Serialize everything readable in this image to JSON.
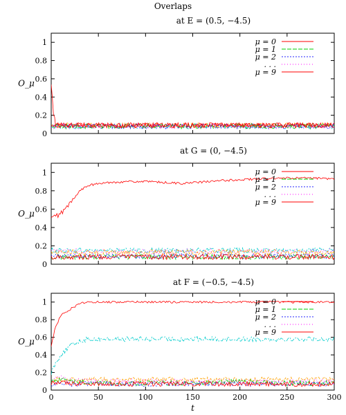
{
  "title": "Overlaps",
  "chart_data": [
    {
      "type": "line",
      "title": "at E = (0.5, −4.5)",
      "ylabel": "O_μ",
      "xlim": [
        0,
        300
      ],
      "ylim": [
        0,
        1.1
      ],
      "yticks": [
        "0",
        "0.2",
        "0.4",
        "0.6",
        "0.8",
        "1"
      ],
      "xticks": [],
      "legend_placement": "top-right",
      "series": [
        {
          "name": "μ = 0",
          "color": "#ff0000",
          "dash": "",
          "x": [
            0,
            2,
            5,
            50,
            100,
            150,
            200,
            250,
            300
          ],
          "y": [
            0.55,
            0.25,
            0.09,
            0.09,
            0.09,
            0.09,
            0.09,
            0.09,
            0.09
          ]
        },
        {
          "name": "μ = 1",
          "color": "#00cc00",
          "dash": "6,2",
          "x": [
            0,
            50,
            100,
            150,
            200,
            250,
            300
          ],
          "y": [
            0.08,
            0.08,
            0.08,
            0.08,
            0.08,
            0.08,
            0.08
          ]
        },
        {
          "name": "μ = 2",
          "color": "#2020ff",
          "dash": "2,2",
          "x": [
            0,
            50,
            100,
            150,
            200,
            250,
            300
          ],
          "y": [
            0.08,
            0.08,
            0.08,
            0.08,
            0.08,
            0.08,
            0.08
          ]
        },
        {
          "name": ". . .",
          "color": "#ff00ff",
          "dash": "1,3",
          "x": [
            0,
            50,
            100,
            150,
            200,
            250,
            300
          ],
          "y": [
            0.08,
            0.08,
            0.08,
            0.08,
            0.08,
            0.08,
            0.08
          ]
        },
        {
          "name": "μ = 9",
          "color": "#ff0000",
          "dash": "",
          "x": [
            0,
            50,
            100,
            150,
            200,
            250,
            300
          ],
          "y": [
            0.09,
            0.09,
            0.09,
            0.09,
            0.09,
            0.09,
            0.09
          ]
        }
      ],
      "extra_series": [
        {
          "color": "#00cccc",
          "dash": "6,2,2,2",
          "x": [
            0,
            50,
            100,
            150,
            200,
            250,
            300
          ],
          "y": [
            0.08,
            0.08,
            0.08,
            0.08,
            0.08,
            0.08,
            0.08
          ]
        },
        {
          "color": "#ffa000",
          "dash": "4,2",
          "x": [
            0,
            50,
            100,
            150,
            200,
            250,
            300
          ],
          "y": [
            0.09,
            0.09,
            0.09,
            0.09,
            0.09,
            0.09,
            0.09
          ]
        }
      ]
    },
    {
      "type": "line",
      "title": "at G = (0, −4.5)",
      "ylabel": "O_μ",
      "xlim": [
        0,
        300
      ],
      "ylim": [
        0,
        1.1
      ],
      "yticks": [
        "0",
        "0.2",
        "0.4",
        "0.6",
        "0.8",
        "1"
      ],
      "xticks": [],
      "legend_placement": "top-right",
      "series": [
        {
          "name": "μ = 0",
          "color": "#ff0000",
          "dash": "",
          "x": [
            0,
            10,
            20,
            30,
            40,
            60,
            80,
            100,
            140,
            180,
            220,
            260,
            300
          ],
          "y": [
            0.5,
            0.55,
            0.66,
            0.8,
            0.86,
            0.89,
            0.9,
            0.9,
            0.88,
            0.91,
            0.93,
            0.94,
            0.93
          ]
        },
        {
          "name": "μ = 1",
          "color": "#00cc00",
          "dash": "6,2",
          "x": [
            0,
            50,
            100,
            150,
            200,
            250,
            300
          ],
          "y": [
            0.08,
            0.08,
            0.08,
            0.08,
            0.08,
            0.08,
            0.08
          ]
        },
        {
          "name": "μ = 2",
          "color": "#2020ff",
          "dash": "2,2",
          "x": [
            0,
            50,
            100,
            150,
            200,
            250,
            300
          ],
          "y": [
            0.09,
            0.09,
            0.09,
            0.09,
            0.09,
            0.09,
            0.09
          ]
        },
        {
          "name": ". . .",
          "color": "#ff00ff",
          "dash": "1,3",
          "x": [
            0,
            50,
            100,
            150,
            200,
            250,
            300
          ],
          "y": [
            0.14,
            0.14,
            0.14,
            0.14,
            0.14,
            0.14,
            0.14
          ]
        },
        {
          "name": "μ = 9",
          "color": "#ff0000",
          "dash": "",
          "x": [
            0,
            50,
            100,
            150,
            200,
            250,
            300
          ],
          "y": [
            0.08,
            0.08,
            0.08,
            0.08,
            0.08,
            0.08,
            0.08
          ]
        }
      ],
      "extra_series": [
        {
          "color": "#00cccc",
          "dash": "6,2,2,2",
          "x": [
            0,
            50,
            100,
            150,
            200,
            250,
            300
          ],
          "y": [
            0.15,
            0.15,
            0.15,
            0.15,
            0.15,
            0.15,
            0.15
          ]
        },
        {
          "color": "#ffa000",
          "dash": "4,2",
          "x": [
            0,
            50,
            100,
            150,
            200,
            250,
            300
          ],
          "y": [
            0.13,
            0.13,
            0.13,
            0.13,
            0.13,
            0.13,
            0.13
          ]
        }
      ]
    },
    {
      "type": "line",
      "title": "at F = (−0.5, −4.5)",
      "ylabel": "O_μ",
      "xlabel": "t",
      "xlim": [
        0,
        300
      ],
      "ylim": [
        0,
        1.1
      ],
      "yticks": [
        "0",
        "0.2",
        "0.4",
        "0.6",
        "0.8",
        "1"
      ],
      "xticks": [
        "0",
        "50",
        "100",
        "150",
        "200",
        "250",
        "300"
      ],
      "legend_placement": "top-right",
      "series": [
        {
          "name": "μ = 0",
          "color": "#ff0000",
          "dash": "",
          "x": [
            0,
            5,
            10,
            20,
            30,
            40,
            50,
            300
          ],
          "y": [
            0.52,
            0.72,
            0.85,
            0.92,
            0.98,
            1.0,
            1.0,
            1.0
          ]
        },
        {
          "name": "μ = 1",
          "color": "#00cc00",
          "dash": "6,2",
          "x": [
            0,
            10,
            20,
            50,
            100,
            150,
            200,
            250,
            300
          ],
          "y": [
            0.1,
            0.13,
            0.1,
            0.08,
            0.08,
            0.08,
            0.1,
            0.08,
            0.08
          ]
        },
        {
          "name": "μ = 2",
          "color": "#2020ff",
          "dash": "2,2",
          "x": [
            0,
            50,
            100,
            150,
            200,
            250,
            300
          ],
          "y": [
            0.07,
            0.07,
            0.07,
            0.07,
            0.07,
            0.07,
            0.07
          ]
        },
        {
          "name": ". . .",
          "color": "#ff00ff",
          "dash": "1,3",
          "x": [
            0,
            10,
            20,
            50,
            100,
            150,
            200,
            250,
            300
          ],
          "y": [
            0.1,
            0.15,
            0.12,
            0.1,
            0.1,
            0.1,
            0.1,
            0.1,
            0.1
          ]
        },
        {
          "name": "μ = 9",
          "color": "#ff0000",
          "dash": "",
          "x": [
            0,
            50,
            100,
            150,
            200,
            250,
            300
          ],
          "y": [
            0.08,
            0.07,
            0.07,
            0.07,
            0.07,
            0.07,
            0.07
          ]
        }
      ],
      "extra_series": [
        {
          "color": "#00cccc",
          "dash": "6,2,2,2",
          "x": [
            0,
            5,
            10,
            20,
            30,
            40,
            50,
            300
          ],
          "y": [
            0.2,
            0.32,
            0.4,
            0.5,
            0.56,
            0.58,
            0.58,
            0.58
          ]
        },
        {
          "color": "#ffa000",
          "dash": "4,2",
          "x": [
            0,
            50,
            100,
            150,
            200,
            250,
            300
          ],
          "y": [
            0.12,
            0.12,
            0.12,
            0.12,
            0.12,
            0.12,
            0.12
          ]
        }
      ]
    }
  ]
}
